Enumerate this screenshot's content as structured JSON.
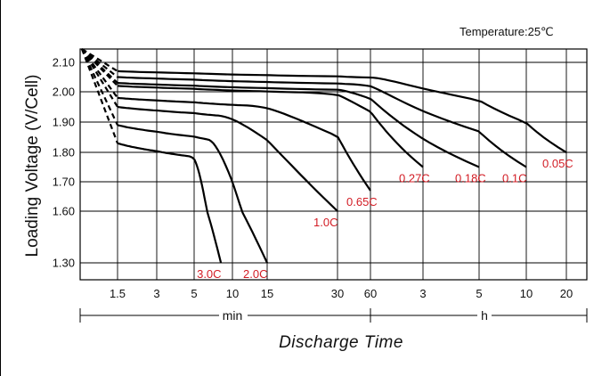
{
  "chart_data": {
    "type": "line",
    "temperature_label": "Temperature:25℃",
    "ylabel": "Loading Voltage (V/Cell)",
    "xlabel": "Discharge Time",
    "y_ticks": [
      "2.10",
      "2.00",
      "1.90",
      "1.80",
      "1.70",
      "1.60",
      "1.30"
    ],
    "y_tick_values": [
      2.1,
      2.0,
      1.9,
      1.8,
      1.7,
      1.6,
      1.3
    ],
    "x_ticks": [
      "1.5",
      "3",
      "5",
      "10",
      "15",
      "30",
      "60",
      "3",
      "5",
      "10",
      "20"
    ],
    "x_tick_minutes": [
      1.5,
      3,
      5,
      10,
      15,
      30,
      60,
      180,
      300,
      600,
      1200
    ],
    "x_unit_min": "min",
    "x_unit_h": "h",
    "start_voltage": 2.13,
    "series": [
      {
        "name": "0.05C",
        "start_v": 2.07,
        "end_minutes": 1200,
        "end_v": 1.8
      },
      {
        "name": "0.1C",
        "start_v": 2.05,
        "end_minutes": 600,
        "end_v": 1.75
      },
      {
        "name": "0.18C",
        "start_v": 2.03,
        "end_minutes": 300,
        "end_v": 1.75
      },
      {
        "name": "0.27C",
        "start_v": 2.02,
        "end_minutes": 180,
        "end_v": 1.75
      },
      {
        "name": "0.65C",
        "start_v": 1.98,
        "end_minutes": 60,
        "end_v": 1.67
      },
      {
        "name": "1.0C",
        "start_v": 1.95,
        "end_minutes": 30,
        "end_v": 1.6
      },
      {
        "name": "2.0C",
        "start_v": 1.89,
        "end_minutes": 15,
        "end_v": 1.3
      },
      {
        "name": "3.0C",
        "start_v": 1.83,
        "end_minutes": 8.5,
        "end_v": 1.3
      }
    ]
  }
}
